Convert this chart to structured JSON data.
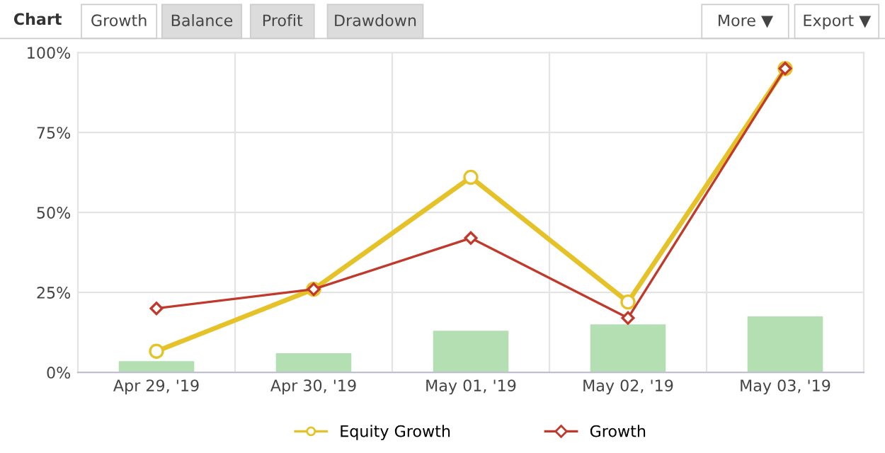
{
  "chart_data": {
    "type": "line",
    "categories": [
      "Apr 29, '19",
      "Apr 30, '19",
      "May 01, '19",
      "May 02, '19",
      "May 03, '19"
    ],
    "series": [
      {
        "type": "bar",
        "color": "#b3dfb3",
        "values": [
          3.5,
          6,
          13,
          15,
          17.5
        ]
      },
      {
        "name": "Equity Growth",
        "color": "#e6c229",
        "marker": "circle",
        "values": [
          6.6,
          26,
          61,
          22,
          95
        ]
      },
      {
        "name": "Growth",
        "color": "#c0392b",
        "marker": "diamond",
        "values": [
          20,
          26,
          42,
          17,
          95
        ]
      }
    ],
    "ylim": [
      0,
      100
    ],
    "yticks": [
      {
        "value": 0,
        "label": "0%"
      },
      {
        "value": 25,
        "label": "25%"
      },
      {
        "value": 50,
        "label": "50%"
      },
      {
        "value": 75,
        "label": "75%"
      },
      {
        "value": 100,
        "label": "100%"
      }
    ],
    "grid": true,
    "legend": "bottom",
    "annotations": [
      "Chart",
      "Growth",
      "Balance",
      "Profit",
      "Drawdown",
      "More ▼",
      "Export ▼"
    ]
  }
}
